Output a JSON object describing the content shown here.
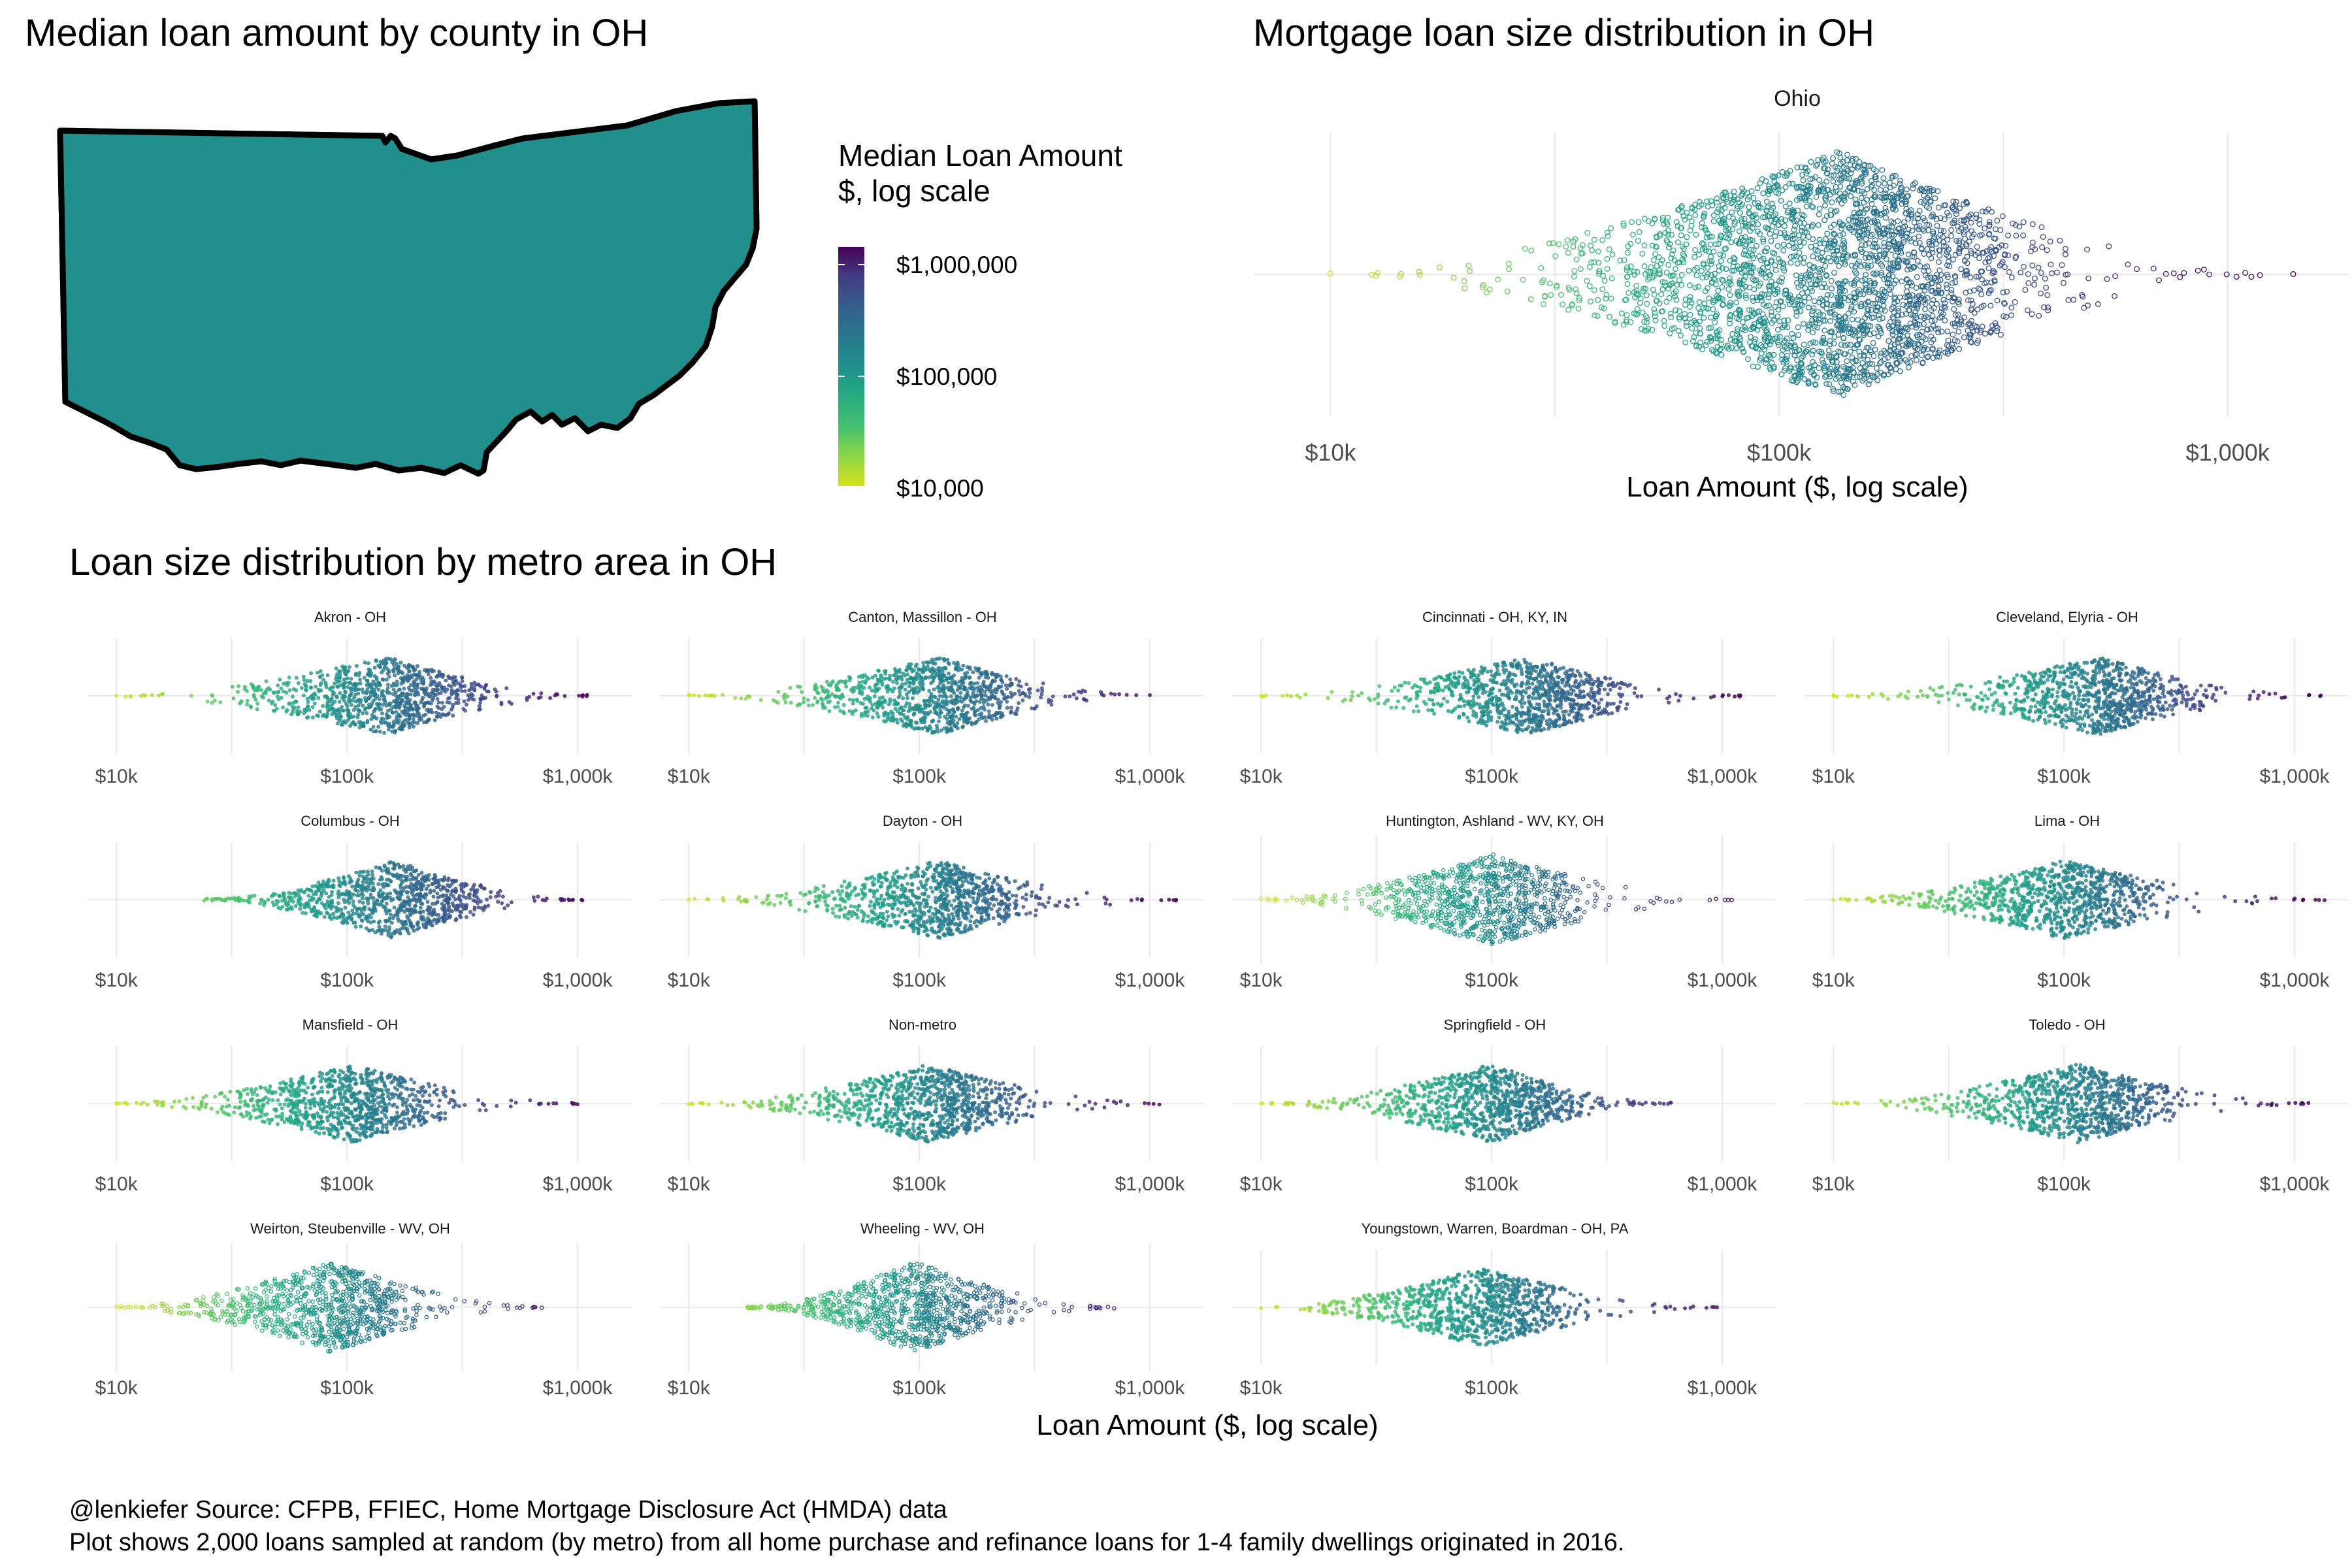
{
  "map_panel": {
    "title": "Median loan amount by county in OH",
    "legend": {
      "title_line1": "Median Loan Amount",
      "title_line2": "$, log scale",
      "ticks": [
        "$1,000,000",
        "$100,000",
        "$10,000"
      ],
      "tick_values": [
        1000000,
        100000,
        10000
      ],
      "range": [
        10000,
        1000000
      ],
      "scale": "log10",
      "palette": "viridis"
    }
  },
  "state_panel": {
    "title": "Mortgage loan size distribution in OH",
    "xlabel": "Loan Amount ($, log scale)"
  },
  "metro_section": {
    "title": "Loan size distribution by metro area in OH",
    "xlabel": "Loan Amount ($, log scale)"
  },
  "caption": {
    "line1": "@lenkiefer Source: CFPB, FFIEC, Home Mortgage Disclosure Act (HMDA) data",
    "line2": "Plot shows 2,000 loans sampled at random (by metro) from all home purchase and refinance loans for 1-4 family dwellings originated in 2016."
  },
  "colors": {
    "viridis_low": "#d4e21a",
    "viridis_mid": "#21908c",
    "viridis_high": "#440154",
    "grid": "#ebebeb",
    "map_outline": "#000000"
  },
  "chart_data": [
    {
      "type": "choropleth",
      "title": "Median loan amount by county in OH",
      "region": "Ohio counties",
      "value": "median loan amount",
      "scale": "log10",
      "legend_range": [
        10000,
        1000000
      ],
      "approx_county_median_range": [
        85000,
        175000
      ]
    },
    {
      "type": "scatter",
      "subtype": "beeswarm",
      "title": "Mortgage loan size distribution in OH",
      "xlabel": "Loan Amount ($, log scale)",
      "xscale": "log10",
      "xlim": [
        7000,
        1800000
      ],
      "x_ticks": [
        "$10k",
        "$100k",
        "$1,000k"
      ],
      "x_tick_values": [
        10000,
        100000,
        1000000
      ],
      "grid": true,
      "series": [
        {
          "name": "Ohio",
          "min": 10000,
          "q1": 82000,
          "median": 135000,
          "q3": 210000,
          "max": 1400000
        }
      ]
    },
    {
      "type": "scatter",
      "subtype": "beeswarm-facets",
      "title": "Loan size distribution by metro area in OH",
      "xlabel": "Loan Amount ($, log scale)",
      "xscale": "log10",
      "xlim": [
        8000,
        1600000
      ],
      "x_ticks": [
        "$10k",
        "$100k",
        "$1,000k"
      ],
      "x_tick_values": [
        10000,
        100000,
        1000000
      ],
      "grid": true,
      "sample_size_per_metro": 2000,
      "series": [
        {
          "name": "Akron - OH",
          "min": 10000,
          "median": 150000,
          "max": 1100000
        },
        {
          "name": "Canton, Massillon - OH",
          "min": 10000,
          "median": 120000,
          "max": 1000000
        },
        {
          "name": "Cincinnati - OH, KY, IN",
          "min": 10000,
          "median": 145000,
          "max": 1200000
        },
        {
          "name": "Cleveland, Elyria - OH",
          "min": 10000,
          "median": 140000,
          "max": 1300000
        },
        {
          "name": "Columbus - OH",
          "min": 24000,
          "median": 160000,
          "max": 1050000
        },
        {
          "name": "Dayton - OH",
          "min": 10000,
          "median": 120000,
          "max": 1300000
        },
        {
          "name": "Huntington, Ashland - WV, KY, OH",
          "min": 10000,
          "median": 100000,
          "max": 1100000
        },
        {
          "name": "Lima - OH",
          "min": 10000,
          "median": 100000,
          "max": 1350000
        },
        {
          "name": "Mansfield - OH",
          "min": 10000,
          "median": 105000,
          "max": 1000000
        },
        {
          "name": "Non-metro",
          "min": 10000,
          "median": 110000,
          "max": 1100000
        },
        {
          "name": "Springfield - OH",
          "min": 10000,
          "median": 100000,
          "max": 600000
        },
        {
          "name": "Toledo - OH",
          "min": 10000,
          "median": 115000,
          "max": 1150000
        },
        {
          "name": "Weirton, Steubenville - WV, OH",
          "min": 10000,
          "median": 85000,
          "max": 700000
        },
        {
          "name": "Wheeling - WV, OH",
          "min": 18000,
          "median": 95000,
          "max": 700000
        },
        {
          "name": "Youngstown, Warren, Boardman - OH, PA",
          "min": 10000,
          "median": 90000,
          "max": 950000
        }
      ]
    }
  ]
}
